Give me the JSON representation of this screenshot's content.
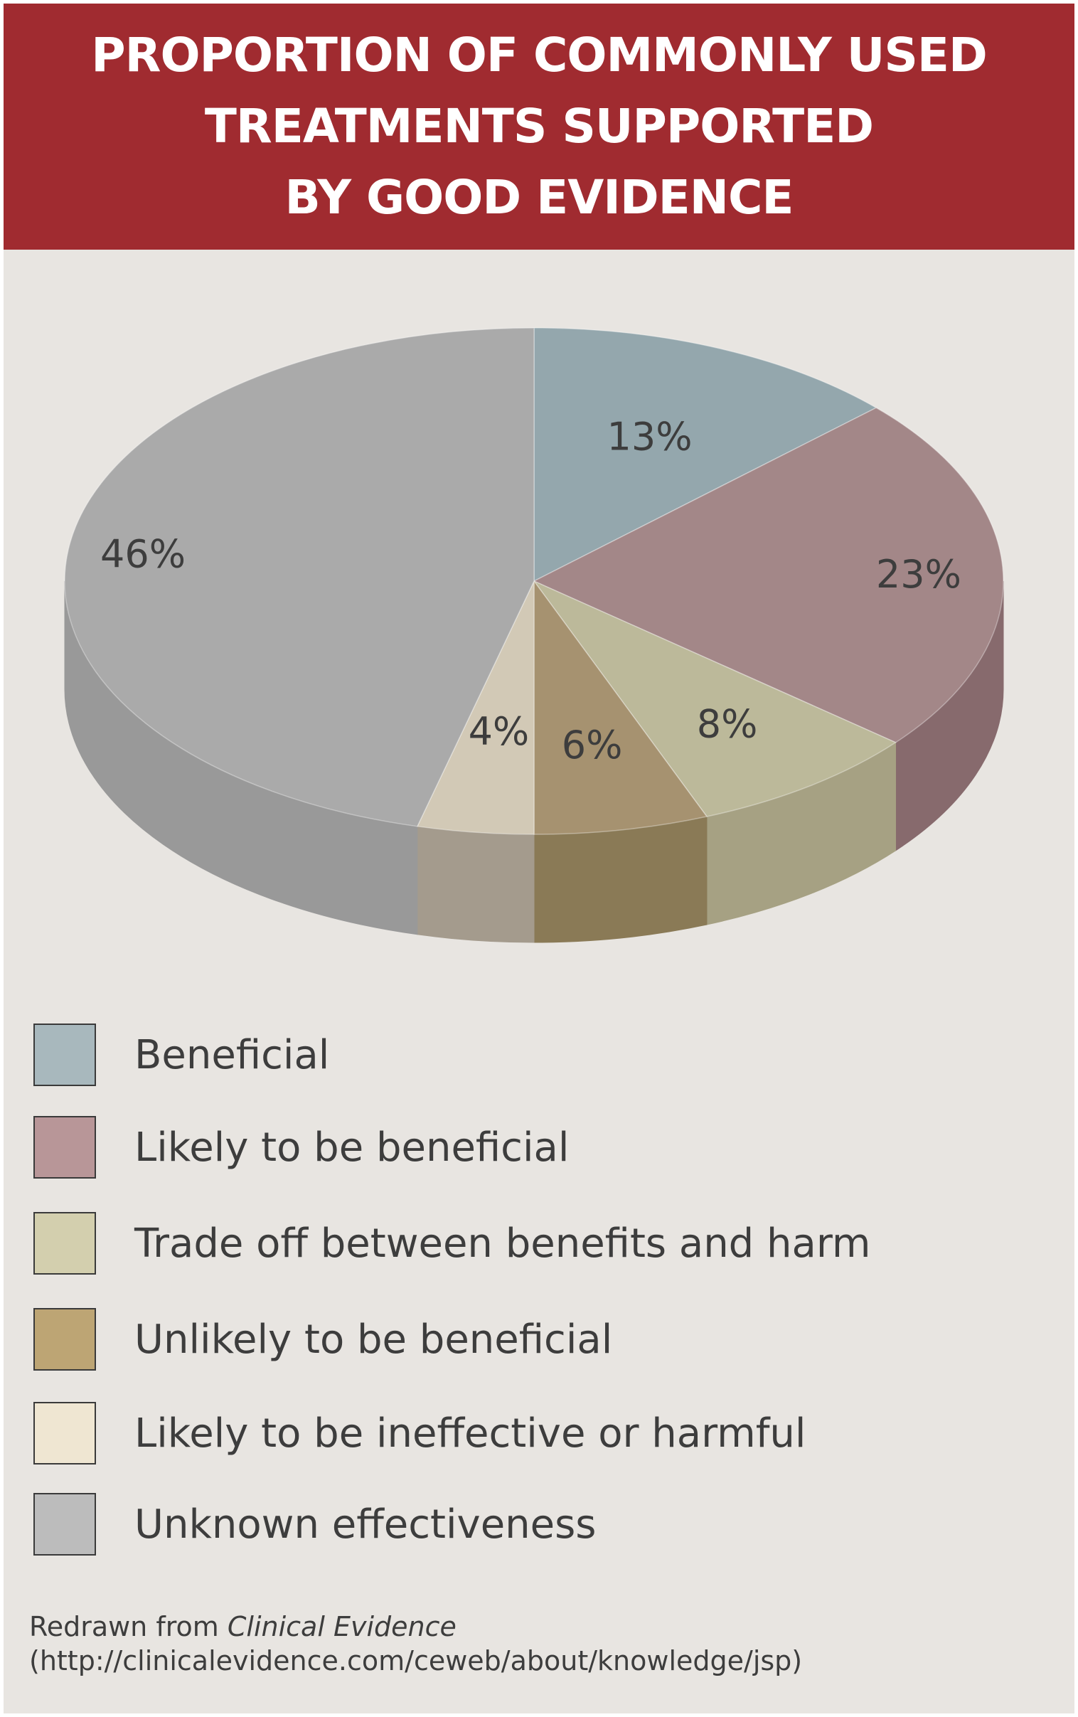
{
  "title_lines": [
    "PROPORTION OF COMMONLY USED",
    "TREATMENTS SUPPORTED",
    "BY GOOD EVIDENCE"
  ],
  "chart_data": {
    "type": "pie",
    "title": "PROPORTION OF COMMONLY USED TREATMENTS SUPPORTED BY GOOD EVIDENCE",
    "categories": [
      "Beneficial",
      "Likely to be beneficial",
      "Trade off between benefits and harm",
      "Unlikely to be beneficial",
      "Likely to be ineffective or harmful",
      "Unknown effectiveness"
    ],
    "values": [
      13,
      23,
      8,
      6,
      4,
      46
    ],
    "data_labels": [
      "13%",
      "23%",
      "8%",
      "6%",
      "4%",
      "46%"
    ],
    "unit": "%",
    "style": "3D",
    "legend_position": "bottom"
  },
  "colors": {
    "title_band": "#a02b30",
    "background": "#e8e5e1",
    "slices_top": [
      "#94a7ad",
      "#a38788",
      "#bcb99a",
      "#a69270",
      "#d2c9b6",
      "#aaaaaa"
    ],
    "slices_side": [
      "#7e9095",
      "#876a6d",
      "#a6a183",
      "#8a7a56",
      "#a49b8d",
      "#999999"
    ],
    "legend_swatches": [
      "#a8b8bd",
      "#b89698",
      "#d3cfae",
      "#bda574",
      "#efe6d2",
      "#bcbcbc"
    ]
  },
  "source": {
    "prefix": "Redrawn from ",
    "publication": "Clinical Evidence",
    "url": "(http://clinicalevidence.com/ceweb/about/knowledge/jsp)"
  }
}
